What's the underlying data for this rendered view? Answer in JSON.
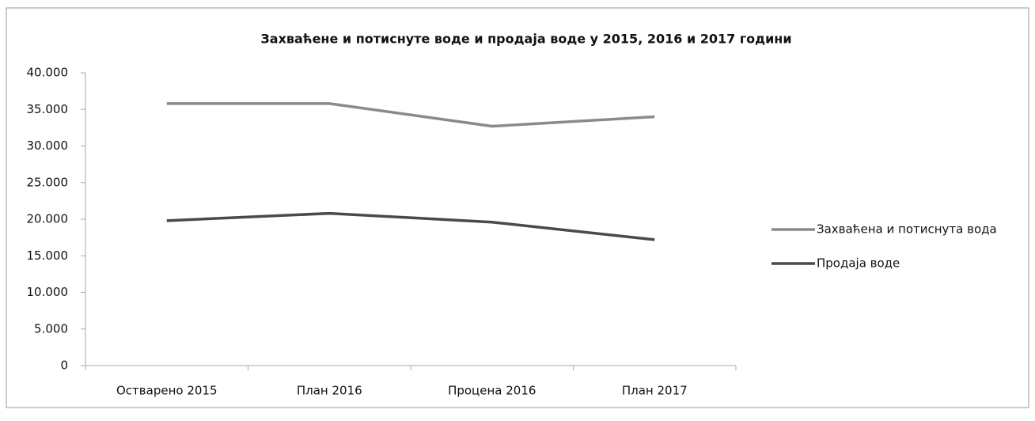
{
  "chart_data": {
    "type": "line",
    "title": "Захваћене и потиснуте воде и продаја воде у 2015, 2016 и 2017 години",
    "categories": [
      "Остварено 2015",
      "План 2016",
      "Процена 2016",
      "План 2017"
    ],
    "series": [
      {
        "name": "Захваћена и потиснута вода",
        "color": "#8a8a8a",
        "values": [
          35800,
          35800,
          32700,
          34000
        ]
      },
      {
        "name": "Продаја воде",
        "color": "#4a4a4a",
        "values": [
          19800,
          20800,
          19600,
          17200
        ]
      }
    ],
    "ylim": [
      0,
      40000
    ],
    "yticks": [
      0,
      {
        "value": 5000,
        "label": "5.000"
      },
      {
        "value": 10000,
        "label": "10.000"
      },
      {
        "value": 15000,
        "label": "15.000"
      },
      {
        "value": 20000,
        "label": "20.000"
      },
      {
        "value": 25000,
        "label": "25.000"
      },
      {
        "value": 30000,
        "label": "30.000"
      },
      {
        "value": 35000,
        "label": "35.000"
      },
      {
        "value": 40000,
        "label": "40.000"
      }
    ],
    "grid": false,
    "legend": "right"
  }
}
